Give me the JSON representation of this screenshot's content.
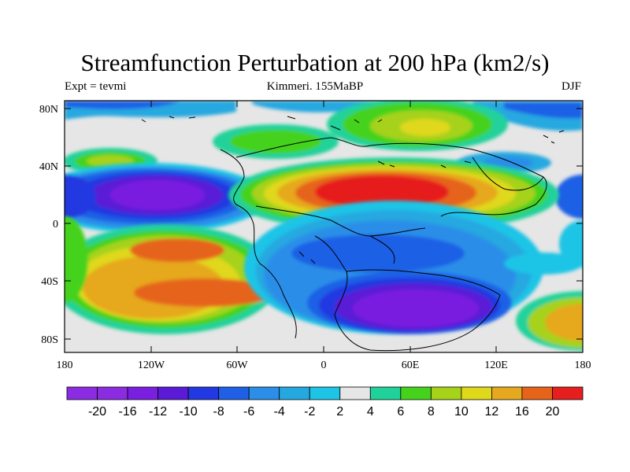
{
  "title": "Streamfunction Perturbation at 200 hPa (km2/s)",
  "subtitle_left": "Expt = tevmi",
  "subtitle_center": "Kimmeri. 155MaBP",
  "subtitle_right": "DJF",
  "lat_ticks": [
    "80N",
    "40N",
    "0",
    "40S",
    "80S"
  ],
  "lon_ticks": [
    "180",
    "120W",
    "60W",
    "0",
    "60E",
    "120E",
    "180"
  ],
  "colorbar": {
    "labels": [
      "-20",
      "-16",
      "-12",
      "-10",
      "-8",
      "-6",
      "-4",
      "-2",
      "2",
      "4",
      "6",
      "8",
      "10",
      "12",
      "16",
      "20"
    ],
    "colors": [
      "#8b2be2",
      "#7a1fe0",
      "#5a1ad6",
      "#2238e0",
      "#1f60e6",
      "#2b8ee8",
      "#25a8e0",
      "#1ec4e6",
      "#e6e6e6",
      "#20d29a",
      "#44d21c",
      "#a6d21a",
      "#e0d81a",
      "#e6a81e",
      "#e6641a",
      "#e61e1e"
    ]
  },
  "field_colors": {
    "neutral": "#e6e6e6",
    "land_outline": "#000000"
  }
}
